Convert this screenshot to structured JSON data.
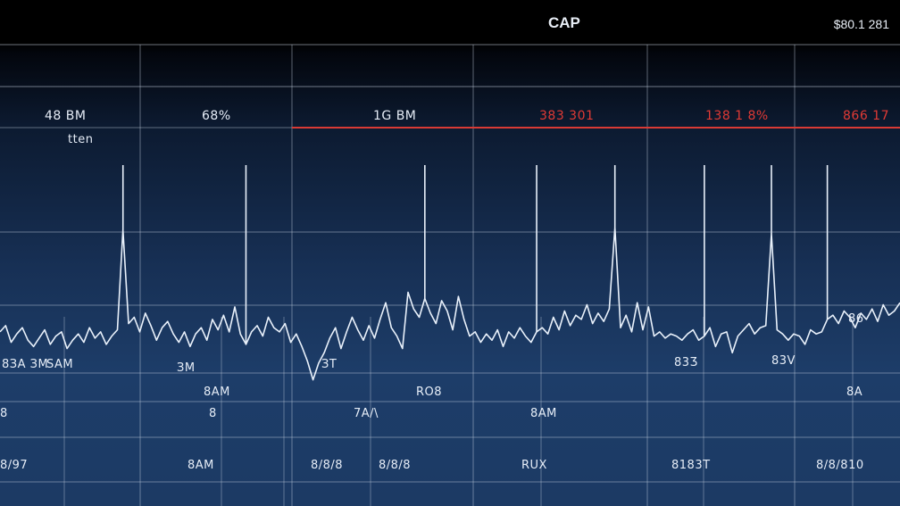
{
  "header": {
    "title": "CAP",
    "price": "$80.1 281"
  },
  "colors": {
    "trace": "#e9f1fb",
    "grid": "#c8d3e2",
    "accent": "#d93a35",
    "background_top": "#000000",
    "background_bottom": "#1c3a64"
  },
  "chart_data": {
    "type": "line",
    "title": "CAP",
    "grid": true,
    "top_labels": [
      {
        "text": "48 BM",
        "color": "white"
      },
      {
        "text": "68%",
        "color": "white"
      },
      {
        "text": "1G BM",
        "color": "white"
      },
      {
        "text": "383 301",
        "color": "red"
      },
      {
        "text": "138 1 8%",
        "color": "red"
      },
      {
        "text": "866 17",
        "color": "red"
      }
    ],
    "sub_label": "tten",
    "side_label": "86",
    "row1_labels": [
      "8ЗA ЗM",
      "SAM",
      "ЗM",
      "ЗT",
      "83Ʒ",
      "83V",
      "8A"
    ],
    "row2_labels": [
      "8AM",
      "8",
      "7A/\\",
      "RO8",
      "8AM",
      "A"
    ],
    "row3_labels": [
      "8/97",
      "8AM",
      "8/8/8",
      "8/8/8",
      "RUX",
      "8183T",
      "8/8/810"
    ],
    "series": [
      {
        "values": [
          0.2,
          0.5,
          -0.3,
          0.1,
          0.4,
          -0.2,
          -0.5,
          -0.1,
          0.3,
          -0.4,
          0.0,
          0.2,
          -0.6,
          -0.2,
          0.1,
          -0.3,
          0.4,
          -0.1,
          0.2,
          -0.4,
          0.0,
          0.3,
          5.1,
          0.6,
          0.9,
          0.2,
          1.1,
          0.5,
          -0.2,
          0.4,
          0.7,
          0.1,
          -0.3,
          0.2,
          -0.5,
          0.1,
          0.4,
          -0.2,
          0.8,
          0.3,
          1.0,
          0.2,
          1.4,
          0.1,
          -0.4,
          0.2,
          0.5,
          0.0,
          0.9,
          0.4,
          0.2,
          0.6,
          -0.3,
          0.1,
          -0.5,
          -1.2,
          -2.1,
          -1.3,
          -0.8,
          -0.1,
          0.4,
          -0.6,
          0.2,
          0.9,
          0.3,
          -0.2,
          0.5,
          -0.1,
          0.8,
          1.6,
          0.4,
          0.0,
          -0.6,
          2.1,
          1.3,
          0.9,
          1.8,
          1.1,
          0.6,
          1.7,
          1.2,
          0.3,
          1.9,
          0.8,
          0.0,
          0.2,
          -0.3,
          0.1,
          -0.2,
          0.3,
          -0.5,
          0.2,
          -0.1,
          0.4,
          0.0,
          -0.3,
          0.2,
          0.4,
          0.1,
          0.9,
          0.3,
          1.2,
          0.5,
          1.0,
          0.8,
          1.5,
          0.6,
          1.1,
          0.7,
          1.3,
          5.2,
          0.4,
          1.0,
          0.2,
          1.6,
          0.3,
          1.4,
          0.0,
          0.2,
          -0.1,
          0.1,
          0.0,
          -0.2,
          0.1,
          0.3,
          -0.2,
          0.0,
          0.4,
          -0.5,
          0.1,
          0.2,
          -0.8,
          0.0,
          0.3,
          0.6,
          0.1,
          0.4,
          0.5,
          4.9,
          0.3,
          0.1,
          -0.2,
          0.1,
          0.0,
          -0.4,
          0.3,
          0.1,
          0.2,
          0.8,
          1.0,
          0.6,
          1.2,
          0.9,
          0.4,
          1.1,
          0.8,
          1.3,
          0.7,
          1.5,
          1.0,
          1.2,
          1.6
        ]
      }
    ],
    "spikes": [
      {
        "index": 22,
        "value": 8.2
      },
      {
        "index": 44,
        "value": 8.2
      },
      {
        "index": 76,
        "value": 8.2
      },
      {
        "index": 96,
        "value": 8.2
      },
      {
        "index": 110,
        "value": 8.2
      },
      {
        "index": 126,
        "value": 8.2
      },
      {
        "index": 138,
        "value": 8.2
      },
      {
        "index": 148,
        "value": 8.2
      }
    ],
    "ylim": [
      -4,
      10
    ]
  }
}
